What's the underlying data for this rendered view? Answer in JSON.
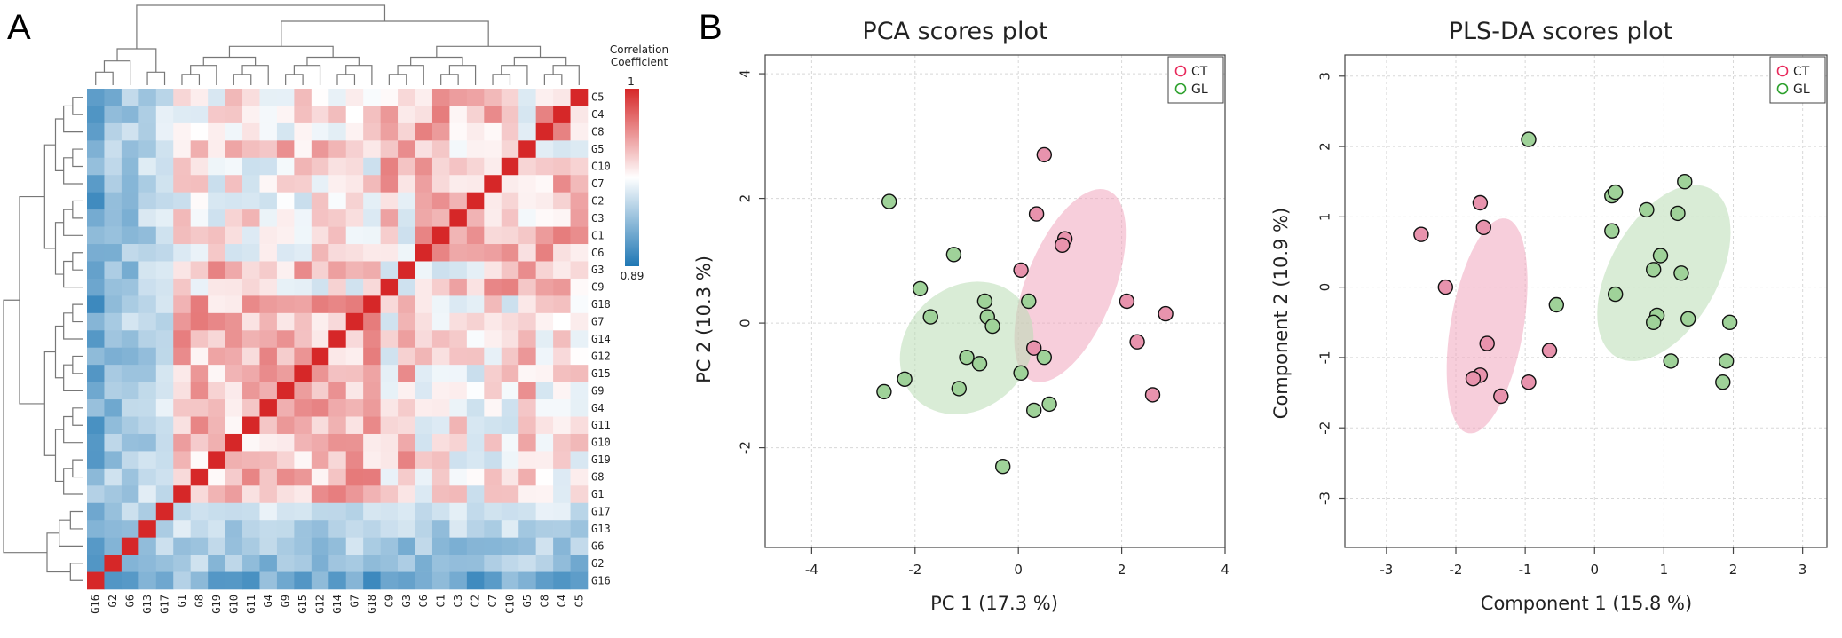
{
  "panels": {
    "a": "A",
    "b": "B"
  },
  "chart_data": [
    {
      "type": "heatmap",
      "title": "",
      "colorbar": {
        "title_line1": "Correlation",
        "title_line2": "Coefficient",
        "max": "1",
        "min": "0.89",
        "max_value": 1,
        "min_value": 0.89,
        "high_color": "#d62728",
        "mid_color": "#ffffff",
        "low_color": "#1f77b4"
      },
      "row_labels": [
        "C5",
        "C4",
        "C8",
        "G5",
        "C10",
        "C7",
        "C2",
        "C3",
        "C1",
        "C6",
        "G3",
        "C9",
        "G18",
        "G7",
        "G14",
        "G12",
        "G15",
        "G9",
        "G4",
        "G11",
        "G10",
        "G19",
        "G8",
        "G1",
        "G17",
        "G13",
        "G6",
        "G2",
        "G16"
      ],
      "col_labels": [
        "G16",
        "G2",
        "G6",
        "G13",
        "G17",
        "G1",
        "G8",
        "G19",
        "G10",
        "G11",
        "G4",
        "G9",
        "G15",
        "G12",
        "G14",
        "G7",
        "G18",
        "C9",
        "G3",
        "C6",
        "C1",
        "C3",
        "C2",
        "C7",
        "C10",
        "G5",
        "C8",
        "C4",
        "C5"
      ]
    },
    {
      "type": "scatter",
      "title": "PCA scores plot",
      "xlabel": "PC 1 (17.3 %)",
      "ylabel": "PC 2 (10.3 %)",
      "xlim": [
        -4.9,
        4.0
      ],
      "ylim": [
        -3.6,
        4.3
      ],
      "xticks": [
        -4,
        -2,
        0,
        2,
        4
      ],
      "yticks": [
        -2,
        0,
        2,
        4
      ],
      "legend": [
        {
          "label": "CT",
          "color": "#e8285a"
        },
        {
          "label": "GL",
          "color": "#2ca02c"
        }
      ],
      "ellipses": [
        {
          "group": "CT",
          "color": "#f0a6bd",
          "cx": 1.0,
          "cy": 0.6,
          "rx": 3.4,
          "ry": 1.65,
          "angle": -62
        },
        {
          "group": "GL",
          "color": "#b9dcb4",
          "cx": -1.0,
          "cy": -0.4,
          "rx": 2.65,
          "ry": 2.05,
          "angle": -20
        }
      ],
      "series": [
        {
          "name": "CT",
          "fill": "#e893ad",
          "points": [
            [
              0.5,
              2.7
            ],
            [
              0.35,
              1.75
            ],
            [
              0.9,
              1.35
            ],
            [
              0.85,
              1.25
            ],
            [
              0.05,
              0.85
            ],
            [
              2.1,
              0.35
            ],
            [
              2.85,
              0.15
            ],
            [
              2.3,
              -0.3
            ],
            [
              0.3,
              -0.4
            ],
            [
              2.6,
              -1.15
            ]
          ]
        },
        {
          "name": "GL",
          "fill": "#9fd299",
          "points": [
            [
              -2.5,
              1.95
            ],
            [
              -1.9,
              0.55
            ],
            [
              -1.25,
              1.1
            ],
            [
              -1.7,
              0.1
            ],
            [
              -0.65,
              0.35
            ],
            [
              -0.6,
              0.1
            ],
            [
              -0.5,
              -0.05
            ],
            [
              0.2,
              0.35
            ],
            [
              -1.0,
              -0.55
            ],
            [
              -0.75,
              -0.65
            ],
            [
              0.5,
              -0.55
            ],
            [
              0.05,
              -0.8
            ],
            [
              -2.2,
              -0.9
            ],
            [
              -2.6,
              -1.1
            ],
            [
              -1.15,
              -1.05
            ],
            [
              0.3,
              -1.4
            ],
            [
              0.6,
              -1.3
            ],
            [
              -0.3,
              -2.3
            ]
          ]
        }
      ]
    },
    {
      "type": "scatter",
      "title": "PLS-DA scores plot",
      "xlabel": "Component 1 (15.8 %)",
      "ylabel": "Component 2 (10.9 %)",
      "xlim": [
        -3.6,
        3.35
      ],
      "ylim": [
        -3.7,
        3.3
      ],
      "xticks": [
        -3,
        -2,
        -1,
        0,
        1,
        2,
        3
      ],
      "yticks": [
        -3,
        -2,
        -1,
        0,
        1,
        2,
        3
      ],
      "legend": [
        {
          "label": "CT",
          "color": "#e8285a"
        },
        {
          "label": "GL",
          "color": "#2ca02c"
        }
      ],
      "ellipses": [
        {
          "group": "CT",
          "color": "#f0a6bd",
          "cx": -1.55,
          "cy": -0.55,
          "rx": 3.1,
          "ry": 1.05,
          "angle": -80
        },
        {
          "group": "GL",
          "color": "#b9dcb4",
          "cx": 1.0,
          "cy": 0.2,
          "rx": 2.75,
          "ry": 1.55,
          "angle": -60
        }
      ],
      "series": [
        {
          "name": "CT",
          "fill": "#e893ad",
          "points": [
            [
              -2.5,
              0.75
            ],
            [
              -1.65,
              1.2
            ],
            [
              -1.6,
              0.85
            ],
            [
              -2.15,
              0.0
            ],
            [
              -1.55,
              -0.8
            ],
            [
              -0.65,
              -0.9
            ],
            [
              -1.65,
              -1.25
            ],
            [
              -1.75,
              -1.3
            ],
            [
              -0.95,
              -1.35
            ],
            [
              -1.35,
              -1.55
            ]
          ]
        },
        {
          "name": "GL",
          "fill": "#9fd299",
          "points": [
            [
              -0.95,
              2.1
            ],
            [
              0.25,
              1.3
            ],
            [
              0.3,
              1.35
            ],
            [
              0.25,
              0.8
            ],
            [
              0.75,
              1.1
            ],
            [
              1.3,
              1.5
            ],
            [
              1.2,
              1.05
            ],
            [
              0.95,
              0.45
            ],
            [
              0.85,
              0.25
            ],
            [
              1.25,
              0.2
            ],
            [
              0.3,
              -0.1
            ],
            [
              -0.55,
              -0.25
            ],
            [
              0.9,
              -0.4
            ],
            [
              0.85,
              -0.5
            ],
            [
              1.35,
              -0.45
            ],
            [
              1.95,
              -0.5
            ],
            [
              1.1,
              -1.05
            ],
            [
              1.9,
              -1.05
            ],
            [
              1.85,
              -1.35
            ]
          ]
        }
      ]
    }
  ]
}
